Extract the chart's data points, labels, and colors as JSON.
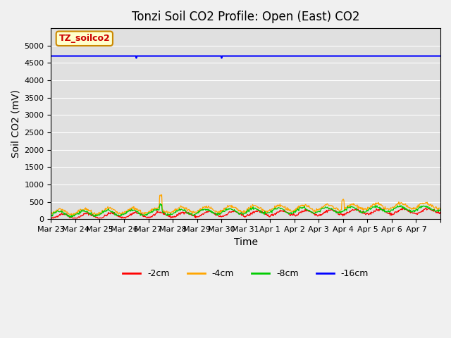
{
  "title": "Tonzi Soil CO2 Profile: Open (East) CO2",
  "ylabel": "Soil CO2 (mV)",
  "xlabel": "Time",
  "watermark_text": "TZ_soilco2",
  "ylim": [
    0,
    5500
  ],
  "yticks": [
    0,
    500,
    1000,
    1500,
    2000,
    2500,
    3000,
    3500,
    4000,
    4500,
    5000
  ],
  "x_tick_positions": [
    0,
    1,
    2,
    3,
    4,
    5,
    6,
    7,
    8,
    9,
    10,
    11,
    12,
    13,
    14,
    15,
    16
  ],
  "x_tick_labels": [
    "Mar 23",
    "Mar 24",
    "Mar 25",
    "Mar 26",
    "Mar 27",
    "Mar 28",
    "Mar 29",
    "Mar 30",
    "Mar 31",
    "Apr 1",
    "Apr 2",
    "Apr 3",
    "Apr 4",
    "Apr 5",
    "Apr 6",
    "Apr 7",
    ""
  ],
  "colors": {
    "2cm": "#ff0000",
    "4cm": "#ffa500",
    "8cm": "#00cc00",
    "16cm": "#0000ff"
  },
  "legend_labels": [
    "-2cm",
    "-4cm",
    "-8cm",
    "-16cm"
  ],
  "background_color": "#e0e0e0",
  "fig_background_color": "#f0f0f0",
  "title_fontsize": 12,
  "axis_fontsize": 10,
  "tick_fontsize": 8
}
